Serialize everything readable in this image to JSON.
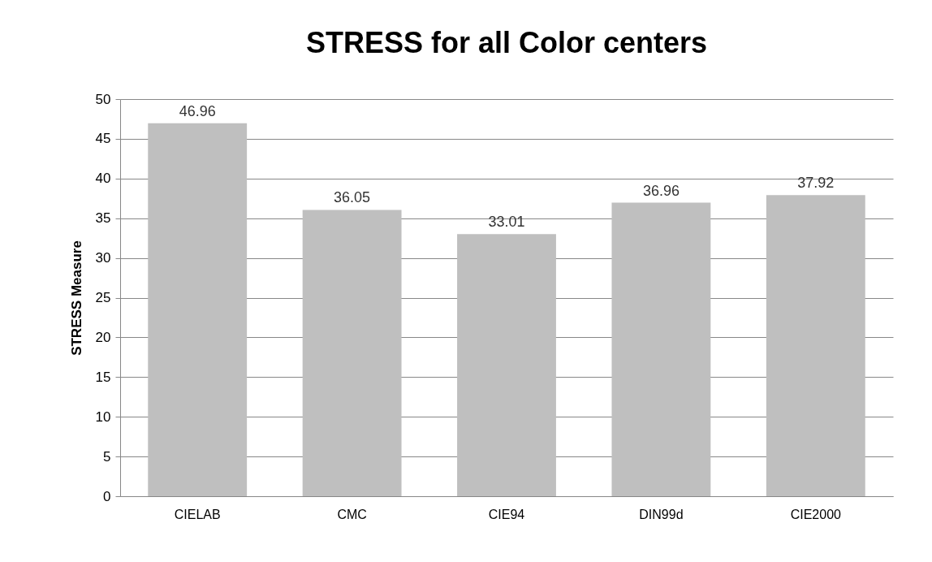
{
  "chart_data": {
    "type": "bar",
    "title": "STRESS for all Color centers",
    "ylabel": "STRESS Measure",
    "categories": [
      "CIELAB",
      "CMC",
      "CIE94",
      "DIN99d",
      "CIE2000"
    ],
    "values": [
      46.96,
      36.05,
      33.01,
      36.96,
      37.92
    ],
    "color": "#bfbfbf",
    "ylim": [
      0,
      50
    ],
    "yticks": [
      0,
      5,
      10,
      15,
      20,
      25,
      30,
      35,
      40,
      45,
      50
    ],
    "grid": "y",
    "data_labels": true
  }
}
